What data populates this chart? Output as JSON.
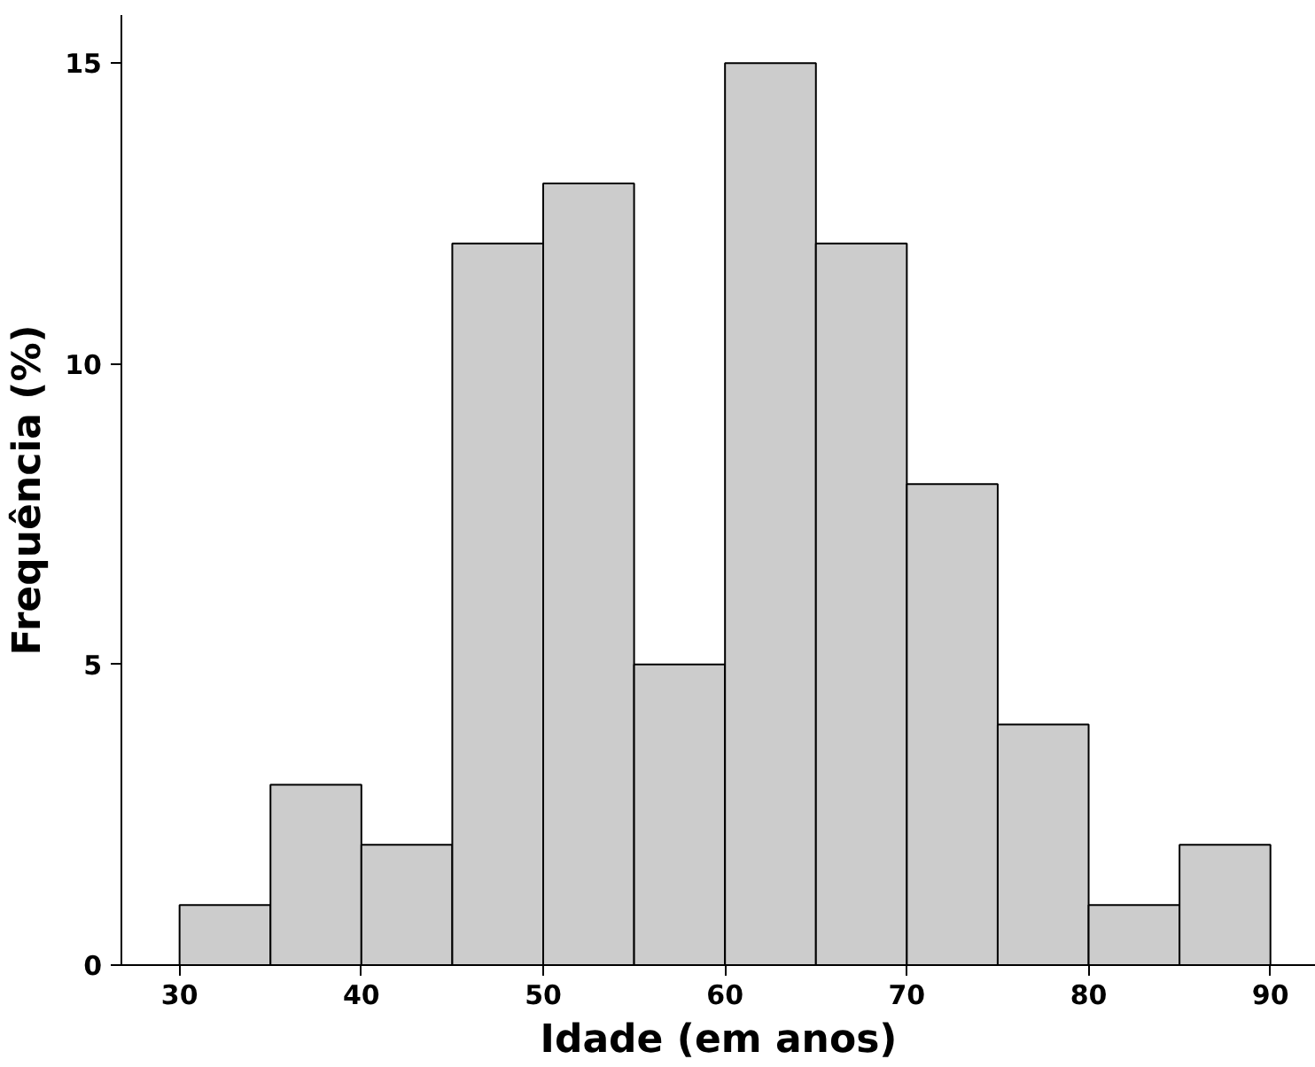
{
  "chart_data": {
    "type": "histogram",
    "xlabel": "Idade (em anos)",
    "ylabel": "Frequência (%)",
    "bins": [
      30,
      35,
      40,
      45,
      50,
      55,
      60,
      65,
      70,
      75,
      80,
      85,
      90
    ],
    "values": [
      1,
      3,
      2,
      12,
      13,
      5,
      15,
      12,
      8,
      4,
      1,
      2
    ],
    "color": "#cccccc",
    "xlim": [
      26.8,
      92.5
    ],
    "ylim": [
      0,
      15.8
    ],
    "xticks": [
      30,
      40,
      50,
      60,
      70,
      80,
      90
    ],
    "yticks": [
      0,
      5,
      10,
      15
    ],
    "grid": false
  }
}
